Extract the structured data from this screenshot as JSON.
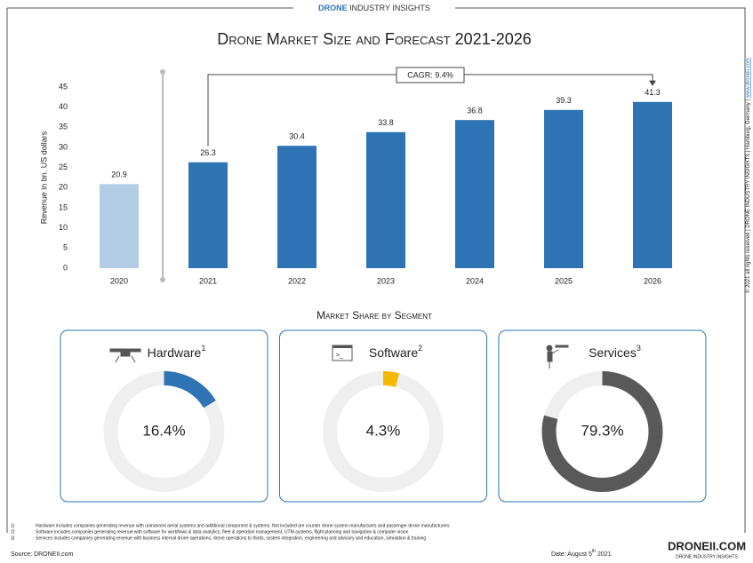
{
  "header": {
    "brand_bold": "DRONE",
    "brand_rest": "INDUSTRY INSIGHTS"
  },
  "chart_data": [
    {
      "type": "bar",
      "title": "Drone Market Size and Forecast 2021-2026",
      "y_label": "Revenue in bn. US dollars",
      "categories": [
        "2020",
        "2021",
        "2022",
        "2023",
        "2024",
        "2025",
        "2026"
      ],
      "values": [
        20.9,
        26.3,
        30.4,
        33.8,
        36.8,
        39.3,
        41.3
      ],
      "colors": [
        "#b4cde7",
        "#2e74b5",
        "#2e74b5",
        "#2e74b5",
        "#2e74b5",
        "#2e74b5",
        "#2e74b5"
      ],
      "ylim": [
        0,
        45
      ],
      "yticks": [
        0,
        5,
        10,
        15,
        20,
        25,
        30,
        35,
        40,
        45
      ],
      "annotation": "CAGR: 9.4%"
    },
    {
      "type": "donut",
      "title": "Hardware",
      "note": "1",
      "values": [
        16.4
      ],
      "value_labels": [
        "16.4%"
      ],
      "color": "#2e74b5"
    },
    {
      "type": "donut",
      "title": "Software",
      "note": "2",
      "values": [
        4.3
      ],
      "value_labels": [
        "4.3%"
      ],
      "color": "#f5b800"
    },
    {
      "type": "donut",
      "title": "Services",
      "note": "3",
      "values": [
        79.3
      ],
      "value_labels": [
        "79.3%"
      ],
      "color": "#595959"
    }
  ],
  "section_title": "Market Share by Segment",
  "footnotes": [
    {
      "num": "1)",
      "text": "Hardware includes companies generating revenue with unmanned aerial systems and additional component & systems. Not included are counter drone system manufactures and passenger drone manufacturers"
    },
    {
      "num": "2)",
      "text": "Software includes companies generating revenue with software for workflows & data analytics, fleet & operation management, UTM-systems, flight planning and navigation & computer vision"
    },
    {
      "num": "3)",
      "text": "Services includes companies generating revenue with business internal drone operations, drone operations to thirds, system integration, engineering and advisory and education, simulation & training"
    }
  ],
  "source": "Source: DRONEII.com",
  "date": {
    "main": "Date: August 5",
    "sup": "th",
    "year": " 2021"
  },
  "copyright": "© 2021 all rights reserved | DRONE INDUSTRY INSIGHTS | Hamburg, Germany |",
  "copyright_link": "www.droneii.com",
  "logo": {
    "main": "DRONEII.COM",
    "sub": "DRONE INDUSTRY INSIGHTS"
  }
}
